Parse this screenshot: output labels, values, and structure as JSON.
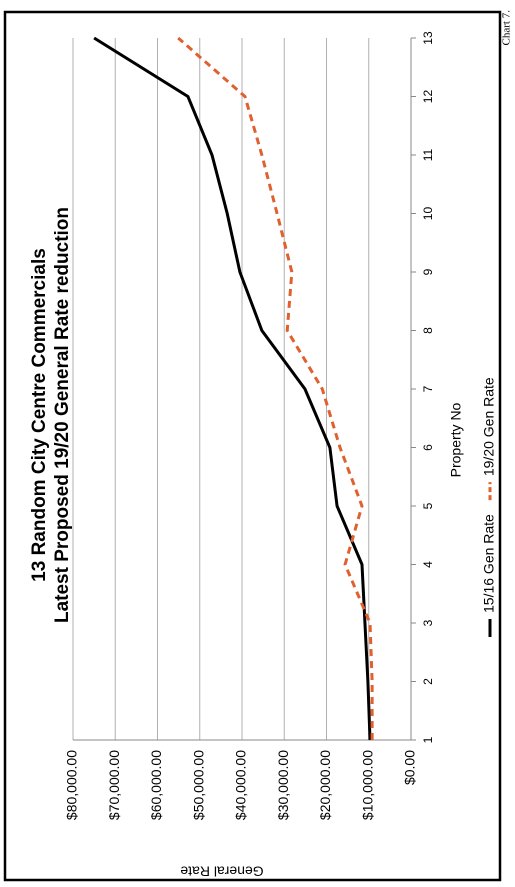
{
  "chart_data": {
    "type": "line",
    "title": "13 Random City Centre Commercials",
    "subtitle": "Latest Proposed 19/20 General Rate reduction",
    "note": "Chart 7.",
    "x_label": "Property No",
    "y_label": "General Rate",
    "x": [
      1,
      2,
      3,
      4,
      5,
      6,
      7,
      8,
      9,
      10,
      11,
      12,
      13
    ],
    "xlim": [
      1,
      13
    ],
    "xticks": [
      1,
      2,
      3,
      4,
      5,
      6,
      7,
      8,
      9,
      10,
      11,
      12,
      13
    ],
    "ylim": [
      0,
      80000
    ],
    "yticks": [
      {
        "value": 0,
        "label": "$0.00"
      },
      {
        "value": 10000,
        "label": "$10,000.00"
      },
      {
        "value": 20000,
        "label": "$20,000.00"
      },
      {
        "value": 30000,
        "label": "$30,000.00"
      },
      {
        "value": 40000,
        "label": "$40,000.00"
      },
      {
        "value": 50000,
        "label": "$50,000.00"
      },
      {
        "value": 60000,
        "label": "$60,000.00"
      },
      {
        "value": 70000,
        "label": "$70,000.00"
      },
      {
        "value": 80000,
        "label": "$80,000.00"
      }
    ],
    "grid": true,
    "legend": "bottom",
    "series": [
      {
        "name": "15/16 Gen Rate",
        "color": "#000000",
        "dashed": false,
        "values": [
          9700,
          10200,
          10900,
          11600,
          17500,
          19200,
          25100,
          35300,
          40500,
          43500,
          47100,
          52800,
          75000
        ]
      },
      {
        "name": "19/20 Gen Rate",
        "color": "#e0602f",
        "dashed": true,
        "values": [
          9200,
          9200,
          9700,
          15600,
          11600,
          16800,
          21000,
          29300,
          28200,
          31700,
          35300,
          39300,
          55100
        ]
      }
    ]
  }
}
